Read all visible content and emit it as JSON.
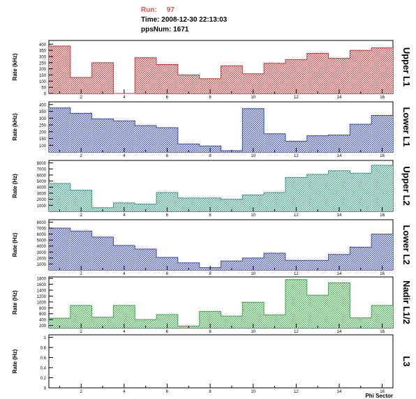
{
  "header": {
    "run_label": "Run:",
    "run_value": "97",
    "time_label": "Time:",
    "time_value": "2008-12-30 22:13:03",
    "pps_label": "ppsNum:",
    "pps_value": "1671"
  },
  "colors": {
    "red": "#c23b3b",
    "blue": "#3a4ab0",
    "teal": "#3c9a86",
    "green": "#3fa84a",
    "axis": "#000000"
  },
  "chart_data": [
    {
      "type": "bar",
      "title": "Upper L1",
      "ylabel": "Rate (kHz)",
      "xlabel": "",
      "color": "red",
      "x": [
        1,
        2,
        3,
        4,
        5,
        6,
        7,
        8,
        9,
        10,
        11,
        12,
        13,
        14,
        15,
        16
      ],
      "values": [
        385,
        130,
        250,
        0,
        290,
        235,
        150,
        120,
        225,
        160,
        245,
        275,
        325,
        285,
        350,
        370
      ],
      "ylim": [
        0,
        430
      ],
      "yticks": [
        0,
        50,
        100,
        150,
        200,
        250,
        300,
        350,
        400
      ],
      "xticks": [
        2,
        4,
        6,
        8,
        10,
        12,
        14,
        16
      ]
    },
    {
      "type": "bar",
      "title": "Lower L1",
      "ylabel": "Rate (kHz)",
      "xlabel": "",
      "color": "blue",
      "x": [
        1,
        2,
        3,
        4,
        5,
        6,
        7,
        8,
        9,
        10,
        11,
        12,
        13,
        14,
        15,
        16
      ],
      "values": [
        375,
        335,
        295,
        280,
        245,
        230,
        110,
        95,
        60,
        370,
        185,
        130,
        170,
        175,
        255,
        320
      ],
      "ylim": [
        50,
        420
      ],
      "yticks": [
        100,
        150,
        200,
        250,
        300,
        350,
        400
      ],
      "xticks": [
        2,
        4,
        6,
        8,
        10,
        12,
        14,
        16
      ]
    },
    {
      "type": "bar",
      "title": "Upper L2",
      "ylabel": "Rate (Hz)",
      "xlabel": "",
      "color": "teal",
      "x": [
        1,
        2,
        3,
        4,
        5,
        6,
        7,
        8,
        9,
        10,
        11,
        12,
        13,
        14,
        15,
        16
      ],
      "values": [
        4600,
        3500,
        600,
        1400,
        1200,
        3100,
        2200,
        2200,
        2000,
        2700,
        3100,
        5600,
        6100,
        6700,
        6300,
        7600
      ],
      "ylim": [
        0,
        8400
      ],
      "yticks": [
        1000,
        2000,
        3000,
        4000,
        5000,
        6000,
        7000,
        8000
      ],
      "xticks": [
        2,
        4,
        6,
        8,
        10,
        12,
        14,
        16
      ]
    },
    {
      "type": "bar",
      "title": "Lower L2",
      "ylabel": "Rate (Hz)",
      "xlabel": "",
      "color": "blue",
      "x": [
        1,
        2,
        3,
        4,
        5,
        6,
        7,
        8,
        9,
        10,
        11,
        12,
        13,
        14,
        15,
        16
      ],
      "values": [
        7000,
        6500,
        5500,
        4100,
        3500,
        2100,
        1200,
        400,
        1500,
        2000,
        2800,
        1600,
        1600,
        2600,
        3800,
        6000
      ],
      "ylim": [
        0,
        8400
      ],
      "yticks": [
        1000,
        2000,
        3000,
        4000,
        5000,
        6000,
        7000,
        8000
      ],
      "xticks": [
        2,
        4,
        6,
        8,
        10,
        12,
        14,
        16
      ]
    },
    {
      "type": "bar",
      "title": "Nadir L1/2",
      "ylabel": "Rate (Hz)",
      "xlabel": "",
      "color": "green",
      "x": [
        1,
        2,
        3,
        4,
        5,
        6,
        7,
        8,
        9,
        10,
        11,
        12,
        13,
        14,
        15,
        16
      ],
      "values": [
        450,
        880,
        480,
        880,
        400,
        570,
        180,
        680,
        520,
        990,
        560,
        1760,
        1230,
        1650,
        460,
        880
      ],
      "ylim": [
        120,
        1850
      ],
      "yticks": [
        200,
        400,
        600,
        800,
        1000,
        1200,
        1400,
        1600,
        1800
      ],
      "xticks": [
        2,
        4,
        6,
        8,
        10,
        12,
        14,
        16
      ]
    },
    {
      "type": "bar",
      "title": "L3",
      "ylabel": "Rate (Hz)",
      "xlabel": "Phi Sector",
      "color": "none",
      "x": [],
      "values": [],
      "ylim": [
        0,
        1.05
      ],
      "yticks": [
        0,
        0.2,
        0.4,
        0.6,
        0.8,
        1
      ],
      "xticks": [
        2,
        4,
        6,
        8,
        10,
        12,
        14,
        16
      ]
    }
  ]
}
